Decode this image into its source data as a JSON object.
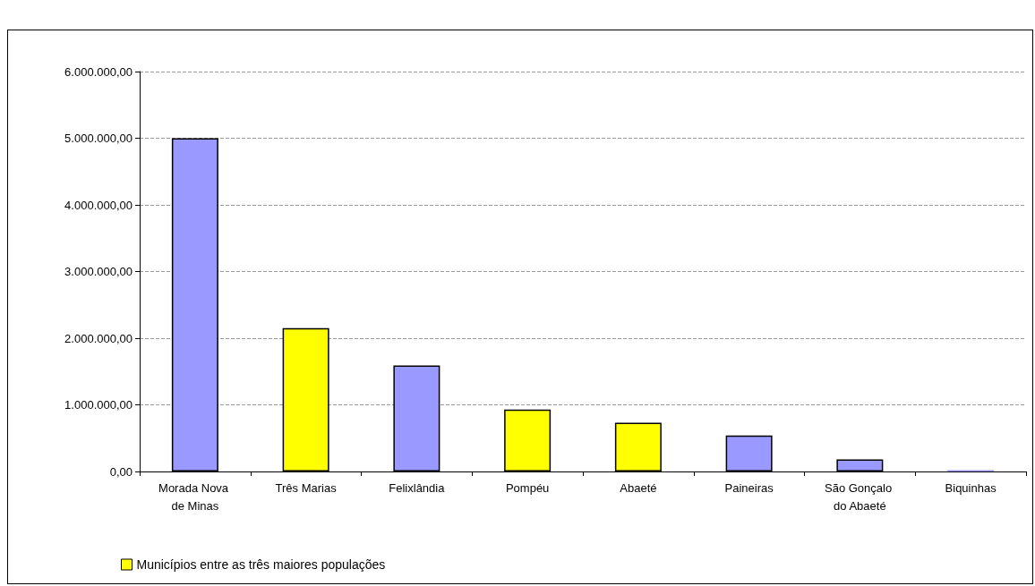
{
  "chart_data": {
    "type": "bar",
    "categories": [
      "Morada Nova de Minas",
      "Três Marias",
      "Felixlândia",
      "Pompéu",
      "Abaeté",
      "Paineiras",
      "São Gonçalo do Abaeté",
      "Biquinhas"
    ],
    "series": [
      {
        "color": "#9999ff",
        "values": [
          5000000,
          null,
          1590000,
          null,
          null,
          540000,
          180000,
          20000
        ]
      },
      {
        "name": "Municípios entre as três maiores populações",
        "color": "#ffff00",
        "values": [
          null,
          2150000,
          null,
          930000,
          730000,
          null,
          null,
          null
        ]
      }
    ],
    "ylim": [
      0,
      6000000
    ],
    "yticks": [
      {
        "value": 0,
        "label": "0,00"
      },
      {
        "value": 1000000,
        "label": "1.000.000,00"
      },
      {
        "value": 2000000,
        "label": "2.000.000,00"
      },
      {
        "value": 3000000,
        "label": "3.000.000,00"
      },
      {
        "value": 4000000,
        "label": "4.000.000,00"
      },
      {
        "value": 5000000,
        "label": "5.000.000,00"
      },
      {
        "value": 6000000,
        "label": "6.000.000,00"
      }
    ],
    "grid": "y",
    "legend": "bottom left"
  }
}
